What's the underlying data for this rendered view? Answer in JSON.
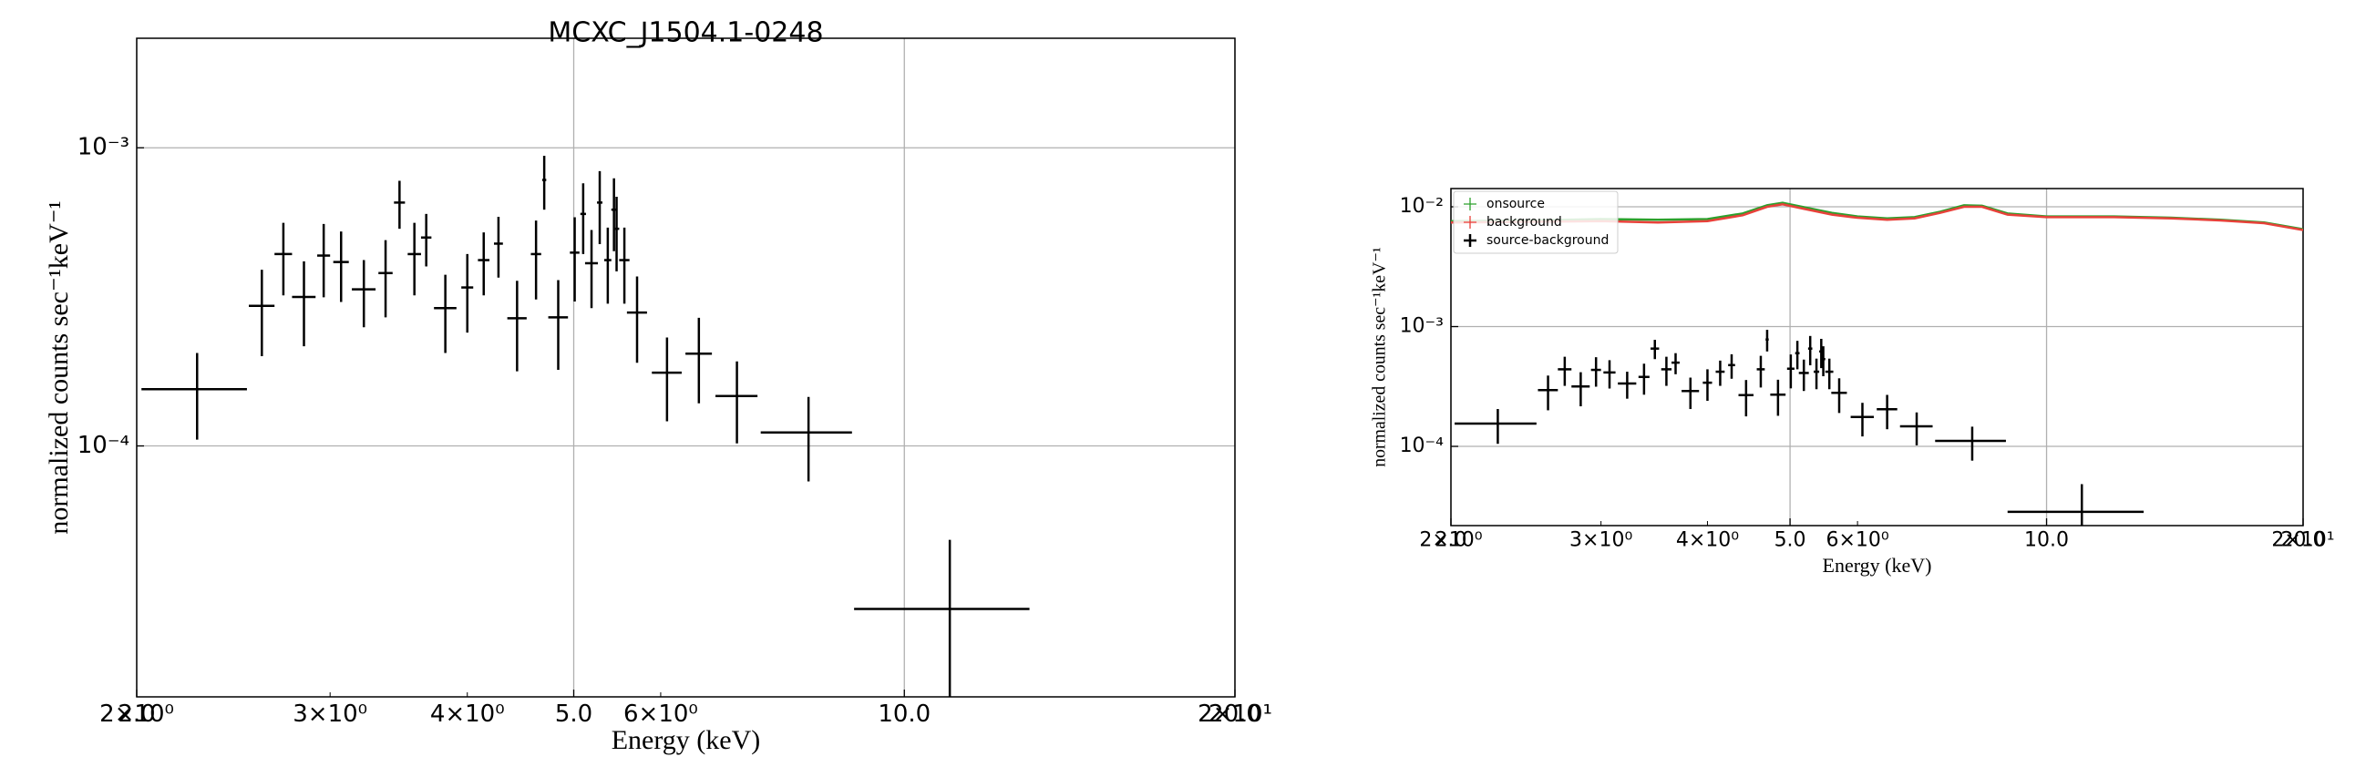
{
  "chart_data": [
    {
      "type": "errorbar",
      "title": "MCXC_J1504.1-0248",
      "xlabel": "Energy (keV)",
      "ylabel": "normalized counts sec⁻¹keV⁻¹",
      "xscale": "log",
      "yscale": "log",
      "grid": true,
      "xlim": [
        2.0,
        20.0
      ],
      "ylim": [
        1.44e-05,
        0.00233
      ],
      "xticks": [
        {
          "value": 2,
          "label": "2.0"
        },
        {
          "value": 5,
          "label": "5.0"
        },
        {
          "value": 10,
          "label": "10.0"
        },
        {
          "value": 20,
          "label": "20.0"
        }
      ],
      "xminorticks": [
        {
          "value": 2,
          "label": "2×10⁰"
        },
        {
          "value": 3,
          "label": "3×10⁰"
        },
        {
          "value": 4,
          "label": "4×10⁰"
        },
        {
          "value": 6,
          "label": "6×10⁰"
        },
        {
          "value": 20,
          "label": "2×10¹"
        }
      ],
      "yticks": [
        {
          "value": 0.0001,
          "label": "10⁻⁴"
        },
        {
          "value": 0.001,
          "label": "10⁻³"
        }
      ],
      "series": [
        {
          "color": "#000000",
          "x": [
            2.27,
            2.6,
            2.72,
            2.84,
            2.96,
            3.07,
            3.22,
            3.37,
            3.47,
            3.58,
            3.67,
            3.82,
            4.0,
            4.14,
            4.27,
            4.44,
            4.62,
            4.7,
            4.84,
            5.01,
            5.1,
            5.19,
            5.28,
            5.37,
            5.44,
            5.47,
            5.56,
            5.71,
            6.08,
            6.5,
            7.04,
            8.18,
            11.0
          ],
          "xerr": [
            0.25,
            0.07,
            0.05,
            0.07,
            0.04,
            0.05,
            0.08,
            0.05,
            0.04,
            0.05,
            0.04,
            0.09,
            0.05,
            0.05,
            0.04,
            0.09,
            0.05,
            0.02,
            0.1,
            0.05,
            0.03,
            0.07,
            0.03,
            0.04,
            0.03,
            0.03,
            0.06,
            0.12,
            0.19,
            0.18,
            0.31,
            0.78,
            2.0
          ],
          "values": [
            0.000155,
            0.000295,
            0.00044,
            0.000316,
            0.000435,
            0.000414,
            0.000335,
            0.00038,
            0.000655,
            0.00044,
            0.0005,
            0.00029,
            0.00034,
            0.00042,
            0.000477,
            0.000268,
            0.00044,
            0.00078,
            0.00027,
            0.000445,
            0.0006,
            0.00041,
            0.000655,
            0.00042,
            0.00062,
            0.000535,
            0.00042,
            0.00028,
            0.000176,
            0.000204,
            0.000147,
            0.000111,
            2.84e-05
          ],
          "yerr": [
            5e-05,
            9.5e-05,
            0.00012,
            0.0001,
            0.00012,
            0.00011,
            8.5e-05,
            0.00011,
            0.00012,
            0.00012,
            0.0001,
            8.5e-05,
            0.0001,
            0.0001,
            0.00011,
            9e-05,
            0.00013,
            0.00016,
            9e-05,
            0.00014,
            0.00016,
            0.00012,
            0.00018,
            0.00012,
            0.00017,
            0.00015,
            0.00012,
            9e-05,
            5.5e-05,
            6.5e-05,
            4.5e-05,
            3.5e-05,
            2e-05
          ]
        }
      ]
    },
    {
      "type": "errorbar",
      "xlabel": "Energy (keV)",
      "ylabel": "normalized counts sec⁻¹keV⁻¹",
      "xscale": "log",
      "yscale": "log",
      "grid": true,
      "legend": "upper left",
      "xlim": [
        2.0,
        20.0
      ],
      "ylim": [
        2.18e-05,
        0.0142
      ],
      "xticks": [
        {
          "value": 2,
          "label": "2.0"
        },
        {
          "value": 5,
          "label": "5.0"
        },
        {
          "value": 10,
          "label": "10.0"
        },
        {
          "value": 20,
          "label": "20.0"
        }
      ],
      "xminorticks": [
        {
          "value": 2,
          "label": "2×10⁰"
        },
        {
          "value": 3,
          "label": "3×10⁰"
        },
        {
          "value": 4,
          "label": "4×10⁰"
        },
        {
          "value": 6,
          "label": "6×10⁰"
        },
        {
          "value": 20,
          "label": "2×10¹"
        }
      ],
      "yticks": [
        {
          "value": 0.0001,
          "label": "10⁻⁴"
        },
        {
          "value": 0.001,
          "label": "10⁻³"
        },
        {
          "value": 0.01,
          "label": "10⁻²"
        }
      ],
      "series": [
        {
          "name": "onsource",
          "color": "#2ca02c",
          "x": [
            2.0,
            2.5,
            3.0,
            3.5,
            4.0,
            4.4,
            4.7,
            4.9,
            5.2,
            5.6,
            6.0,
            6.5,
            7.0,
            7.5,
            8.0,
            8.4,
            9.0,
            10,
            12,
            14,
            16,
            18,
            20
          ],
          "values": [
            0.0076,
            0.0077,
            0.0079,
            0.0078,
            0.0079,
            0.0088,
            0.0103,
            0.0108,
            0.0099,
            0.0089,
            0.0083,
            0.008,
            0.0082,
            0.0091,
            0.0103,
            0.0102,
            0.0088,
            0.0083,
            0.0083,
            0.0081,
            0.0078,
            0.0074,
            0.0065
          ]
        },
        {
          "name": "background",
          "color": "#e8413a",
          "x": [
            2.0,
            2.5,
            3.0,
            3.5,
            4.0,
            4.4,
            4.7,
            4.9,
            5.2,
            5.6,
            6.0,
            6.5,
            7.0,
            7.5,
            8.0,
            8.4,
            9.0,
            10,
            12,
            14,
            16,
            18,
            20
          ],
          "values": [
            0.0074,
            0.0075,
            0.0076,
            0.0074,
            0.0076,
            0.0085,
            0.01,
            0.0105,
            0.0096,
            0.0086,
            0.0081,
            0.0078,
            0.008,
            0.0089,
            0.01,
            0.01,
            0.0086,
            0.0082,
            0.0082,
            0.008,
            0.0077,
            0.0073,
            0.0064
          ]
        },
        {
          "name": "source-background",
          "color": "#000000",
          "x": [
            2.27,
            2.6,
            2.72,
            2.84,
            2.96,
            3.07,
            3.22,
            3.37,
            3.47,
            3.58,
            3.67,
            3.82,
            4.0,
            4.14,
            4.27,
            4.44,
            4.62,
            4.7,
            4.84,
            5.01,
            5.1,
            5.19,
            5.28,
            5.37,
            5.44,
            5.47,
            5.56,
            5.71,
            6.08,
            6.5,
            7.04,
            8.18,
            11.0
          ],
          "xerr": [
            0.25,
            0.07,
            0.05,
            0.07,
            0.04,
            0.05,
            0.08,
            0.05,
            0.04,
            0.05,
            0.04,
            0.09,
            0.05,
            0.05,
            0.04,
            0.09,
            0.05,
            0.02,
            0.1,
            0.05,
            0.03,
            0.07,
            0.03,
            0.04,
            0.03,
            0.03,
            0.06,
            0.12,
            0.19,
            0.18,
            0.31,
            0.78,
            2.0
          ],
          "values": [
            0.000155,
            0.000295,
            0.00044,
            0.000316,
            0.000435,
            0.000414,
            0.000335,
            0.00038,
            0.000655,
            0.00044,
            0.0005,
            0.00029,
            0.00034,
            0.00042,
            0.000477,
            0.000268,
            0.00044,
            0.00078,
            0.00027,
            0.000445,
            0.0006,
            0.00041,
            0.000655,
            0.00042,
            0.00062,
            0.000535,
            0.00042,
            0.00028,
            0.000176,
            0.000204,
            0.000147,
            0.000111,
            2.84e-05
          ],
          "yerr": [
            5e-05,
            9.5e-05,
            0.00012,
            0.0001,
            0.00012,
            0.00011,
            8.5e-05,
            0.00011,
            0.00012,
            0.00012,
            0.0001,
            8.5e-05,
            0.0001,
            0.0001,
            0.00011,
            9e-05,
            0.00013,
            0.00016,
            9e-05,
            0.00014,
            0.00016,
            0.00012,
            0.00018,
            0.00012,
            0.00017,
            0.00015,
            0.00012,
            9e-05,
            5.5e-05,
            6.5e-05,
            4.5e-05,
            3.5e-05,
            2e-05
          ]
        }
      ]
    }
  ]
}
